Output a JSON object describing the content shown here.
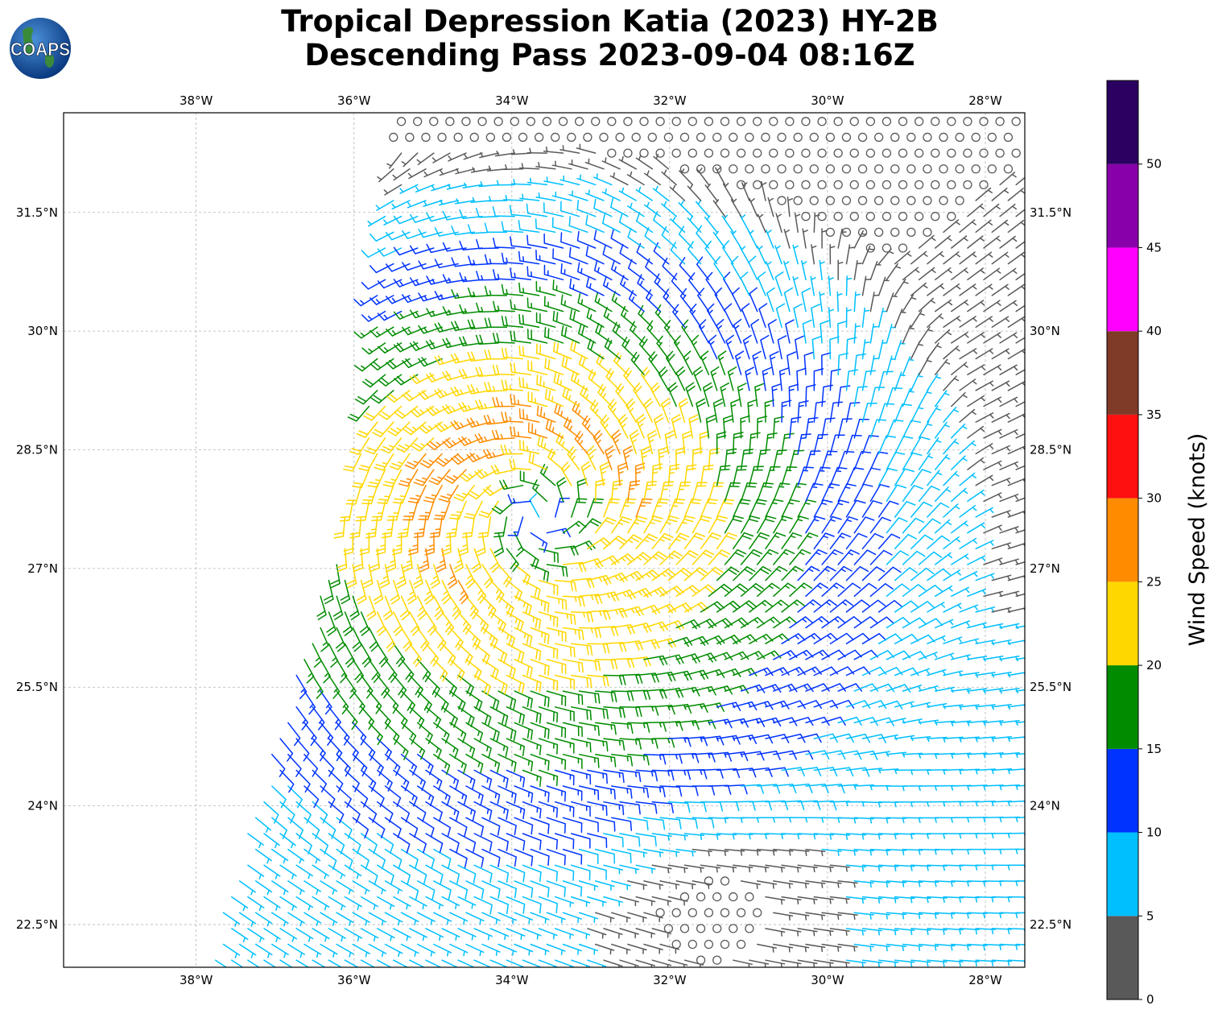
{
  "title": {
    "line1": "Tropical Depression Katia (2023) HY-2B",
    "line2": "Descending Pass 2023-09-04 08:16Z"
  },
  "logo": {
    "text": "COAPS",
    "icon": "globe-icon"
  },
  "map": {
    "lon_range": [
      -39.68,
      -27.5
    ],
    "lat_range": [
      21.96,
      32.76
    ],
    "lon_ticks": [
      {
        "value": -38,
        "label": "38°W"
      },
      {
        "value": -36,
        "label": "36°W"
      },
      {
        "value": -34,
        "label": "34°W"
      },
      {
        "value": -32,
        "label": "32°W"
      },
      {
        "value": -30,
        "label": "30°W"
      },
      {
        "value": -28,
        "label": "28°W"
      }
    ],
    "lat_ticks": [
      {
        "value": 31.5,
        "label": "31.5°N"
      },
      {
        "value": 30,
        "label": "30°N"
      },
      {
        "value": 28.5,
        "label": "28.5°N"
      },
      {
        "value": 27,
        "label": "27°N"
      },
      {
        "value": 25.5,
        "label": "25.5°N"
      },
      {
        "value": 24,
        "label": "24°N"
      },
      {
        "value": 22.5,
        "label": "22.5°N"
      }
    ],
    "grid": true,
    "storm_center": {
      "lon": -33.7,
      "lat": 27.6
    },
    "calm_center": {
      "lon": -31.5,
      "lat": 22.6
    },
    "swath_edge": [
      {
        "lat": 32.65,
        "lon": -35.5
      },
      {
        "lat": 28.5,
        "lon": -35.9
      },
      {
        "lat": 22.2,
        "lon": -37.8
      }
    ]
  },
  "colorbar": {
    "label": "Wind Speed (knots)",
    "ticks": [
      0,
      5,
      10,
      15,
      20,
      25,
      30,
      35,
      40,
      45,
      50
    ],
    "bins": [
      {
        "min": 0,
        "max": 5,
        "color": "#595959"
      },
      {
        "min": 5,
        "max": 10,
        "color": "#00bfff"
      },
      {
        "min": 10,
        "max": 15,
        "color": "#0033ff"
      },
      {
        "min": 15,
        "max": 20,
        "color": "#008c00"
      },
      {
        "min": 20,
        "max": 25,
        "color": "#ffd700"
      },
      {
        "min": 25,
        "max": 30,
        "color": "#ff8c00"
      },
      {
        "min": 30,
        "max": 35,
        "color": "#ff1010"
      },
      {
        "min": 35,
        "max": 40,
        "color": "#803a28"
      },
      {
        "min": 40,
        "max": 45,
        "color": "#ff00ff"
      },
      {
        "min": 45,
        "max": 50,
        "color": "#8800aa"
      },
      {
        "min": 50,
        "max": 55,
        "color": "#2a0060"
      }
    ]
  }
}
